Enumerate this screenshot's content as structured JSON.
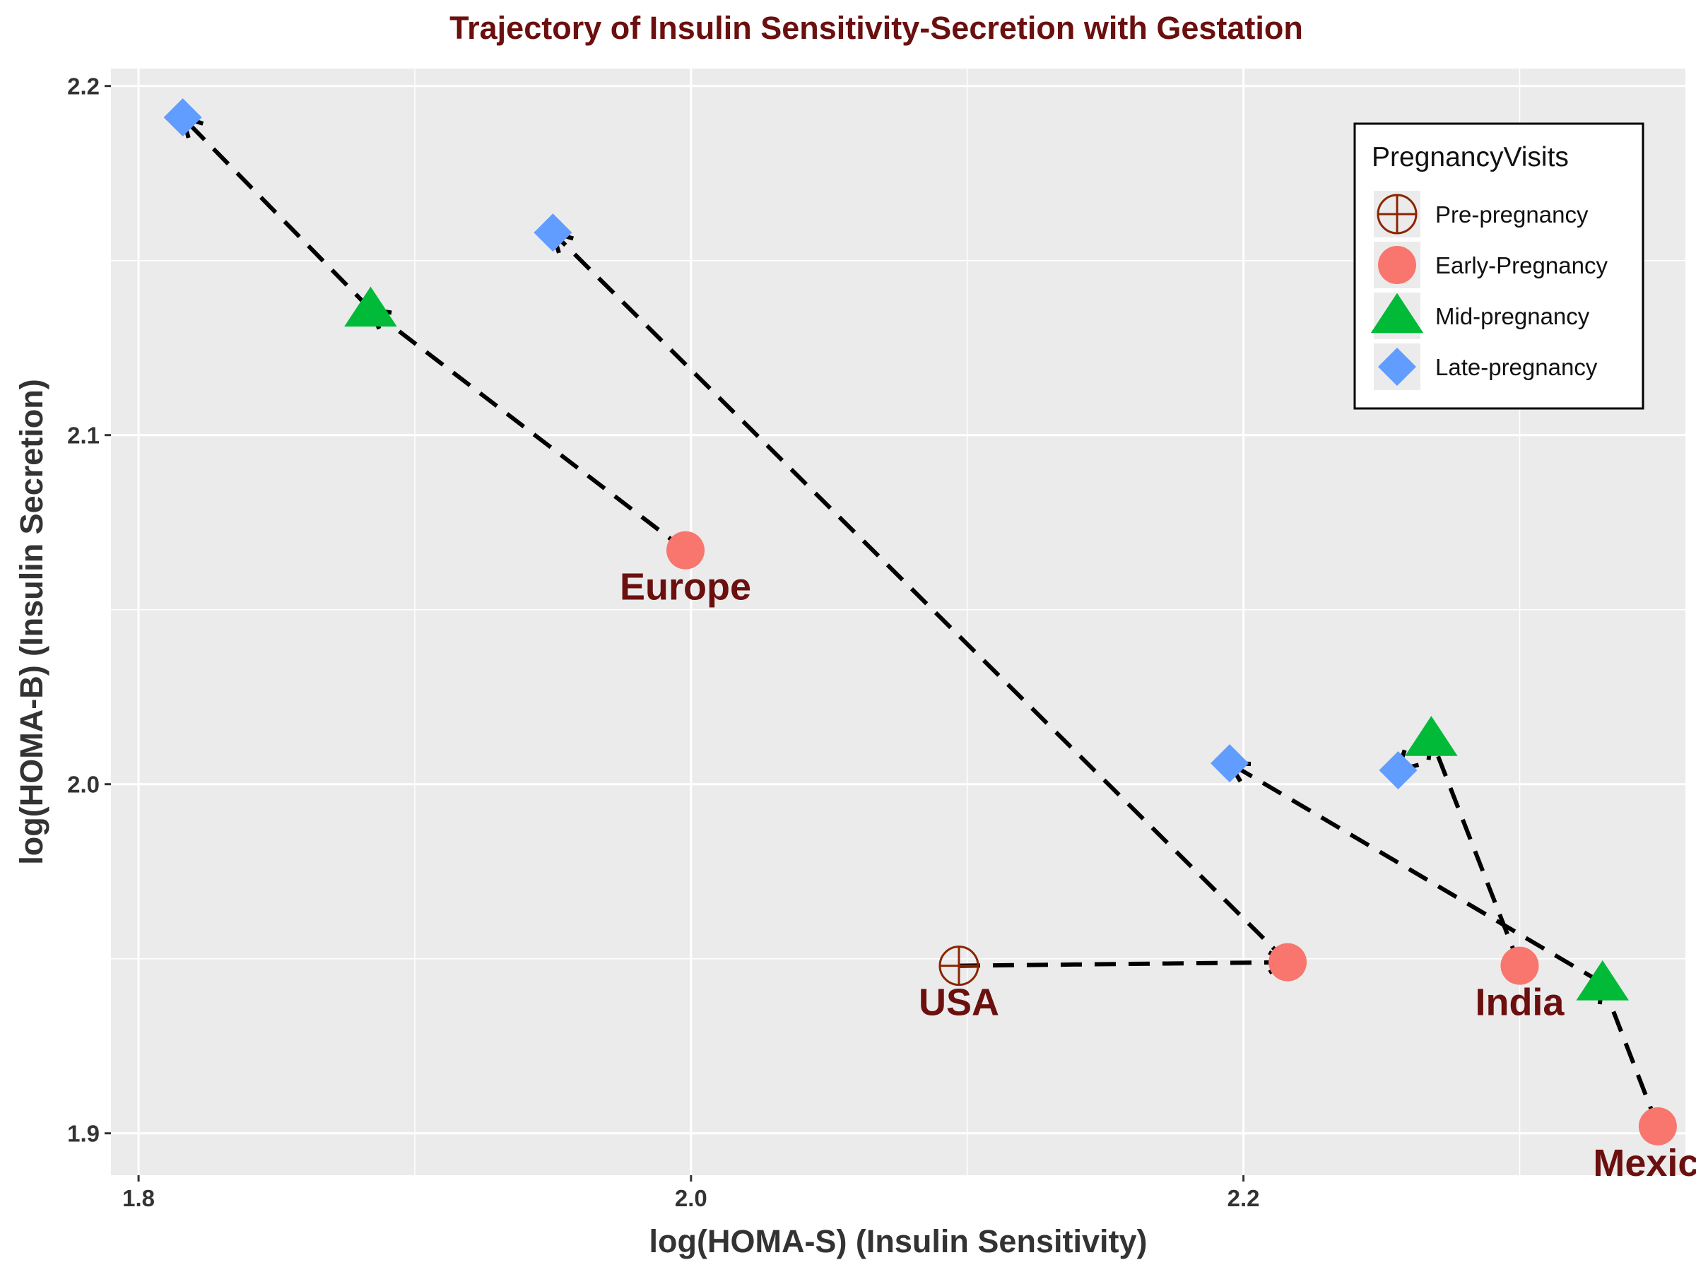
{
  "chart_data": {
    "type": "scatter",
    "title": "Trajectory of Insulin Sensitivity-Secretion with Gestation",
    "xlabel": "log(HOMA-S) (Insulin Sensitivity)",
    "ylabel": "log(HOMA-B) (Insulin Secretion)",
    "xlim": [
      1.79,
      2.36
    ],
    "ylim": [
      1.888,
      2.205
    ],
    "xticks": [
      1.8,
      2.0,
      2.2
    ],
    "xtick_labels": [
      "1.8",
      "2.0",
      "2.2"
    ],
    "yticks": [
      1.9,
      2.0,
      2.1,
      2.2
    ],
    "ytick_labels": [
      "1.9",
      "2.0",
      "2.1",
      "2.2"
    ],
    "grid": true,
    "legend": {
      "title": "PregnancyVisits",
      "position": "top-right",
      "entries": [
        {
          "label": "Pre-pregnancy",
          "shape": "circle-plus",
          "color": "#8b2500"
        },
        {
          "label": "Early-Pregnancy",
          "shape": "circle",
          "color": "#f8766d"
        },
        {
          "label": "Mid-pregnancy",
          "shape": "triangle",
          "color": "#00ba38"
        },
        {
          "label": "Late-pregnancy",
          "shape": "diamond",
          "color": "#619cff"
        }
      ]
    },
    "series": [
      {
        "region": "Europe",
        "points": [
          {
            "visit": "Early-Pregnancy",
            "x": 1.998,
            "y": 2.067
          },
          {
            "visit": "Mid-pregnancy",
            "x": 1.884,
            "y": 2.136
          },
          {
            "visit": "Late-pregnancy",
            "x": 1.816,
            "y": 2.191
          }
        ]
      },
      {
        "region": "USA",
        "points": [
          {
            "visit": "Pre-pregnancy",
            "x": 2.097,
            "y": 1.948
          },
          {
            "visit": "Early-Pregnancy",
            "x": 2.216,
            "y": 1.949
          },
          {
            "visit": "Late-pregnancy",
            "x": 1.95,
            "y": 2.158
          }
        ]
      },
      {
        "region": "India",
        "points": [
          {
            "visit": "Early-Pregnancy",
            "x": 2.3,
            "y": 1.948
          },
          {
            "visit": "Mid-pregnancy",
            "x": 2.268,
            "y": 2.013
          },
          {
            "visit": "Late-pregnancy",
            "x": 2.256,
            "y": 2.004
          }
        ]
      },
      {
        "region": "Mexico",
        "points": [
          {
            "visit": "Early-Pregnancy",
            "x": 2.35,
            "y": 1.902
          },
          {
            "visit": "Mid-pregnancy",
            "x": 2.33,
            "y": 1.943
          },
          {
            "visit": "Late-pregnancy",
            "x": 2.195,
            "y": 2.006
          }
        ]
      }
    ],
    "region_labels": [
      {
        "text": "Europe",
        "x": 1.998,
        "y": 2.067
      },
      {
        "text": "USA",
        "x": 2.097,
        "y": 1.948
      },
      {
        "text": "India",
        "x": 2.3,
        "y": 1.948
      },
      {
        "text": "Mexico",
        "x": 2.35,
        "y": 1.902
      }
    ]
  }
}
